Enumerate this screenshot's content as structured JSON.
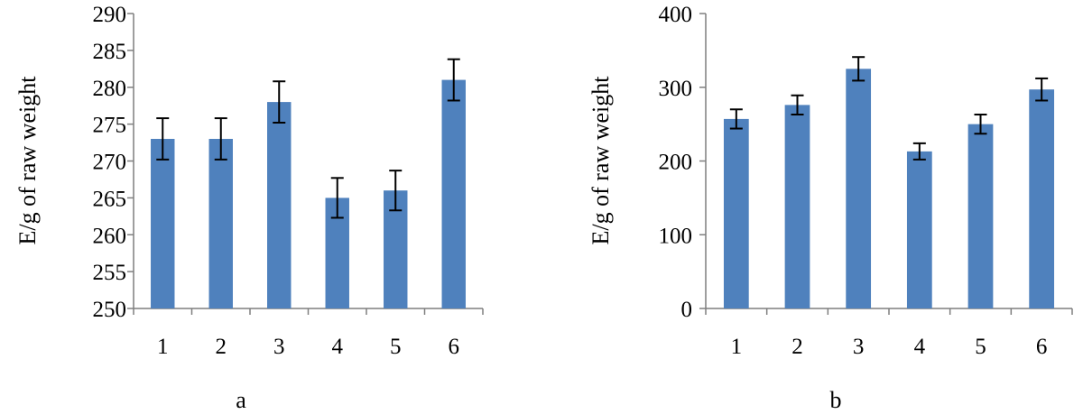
{
  "chart_data": [
    {
      "type": "bar",
      "panel_label": "a",
      "ylabel": "E/g of raw weight",
      "xlabel": "",
      "categories": [
        "1",
        "2",
        "3",
        "4",
        "5",
        "6"
      ],
      "values": [
        273,
        273,
        278,
        265,
        266,
        281
      ],
      "error": [
        2.8,
        2.8,
        2.8,
        2.7,
        2.7,
        2.8
      ],
      "ylim": [
        250,
        290
      ],
      "yticks": [
        250,
        255,
        260,
        265,
        270,
        275,
        280,
        285,
        290
      ],
      "bar_color": "#4f81bd",
      "grid": false,
      "legend": "none"
    },
    {
      "type": "bar",
      "panel_label": "b",
      "ylabel": "E/g of raw weight",
      "xlabel": "",
      "categories": [
        "1",
        "2",
        "3",
        "4",
        "5",
        "6"
      ],
      "values": [
        257,
        276,
        325,
        213,
        250,
        297
      ],
      "error": [
        13,
        13,
        16,
        11,
        13,
        15
      ],
      "ylim": [
        0,
        400
      ],
      "yticks": [
        0,
        100,
        200,
        300,
        400
      ],
      "bar_color": "#4f81bd",
      "grid": false,
      "legend": "none"
    }
  ]
}
